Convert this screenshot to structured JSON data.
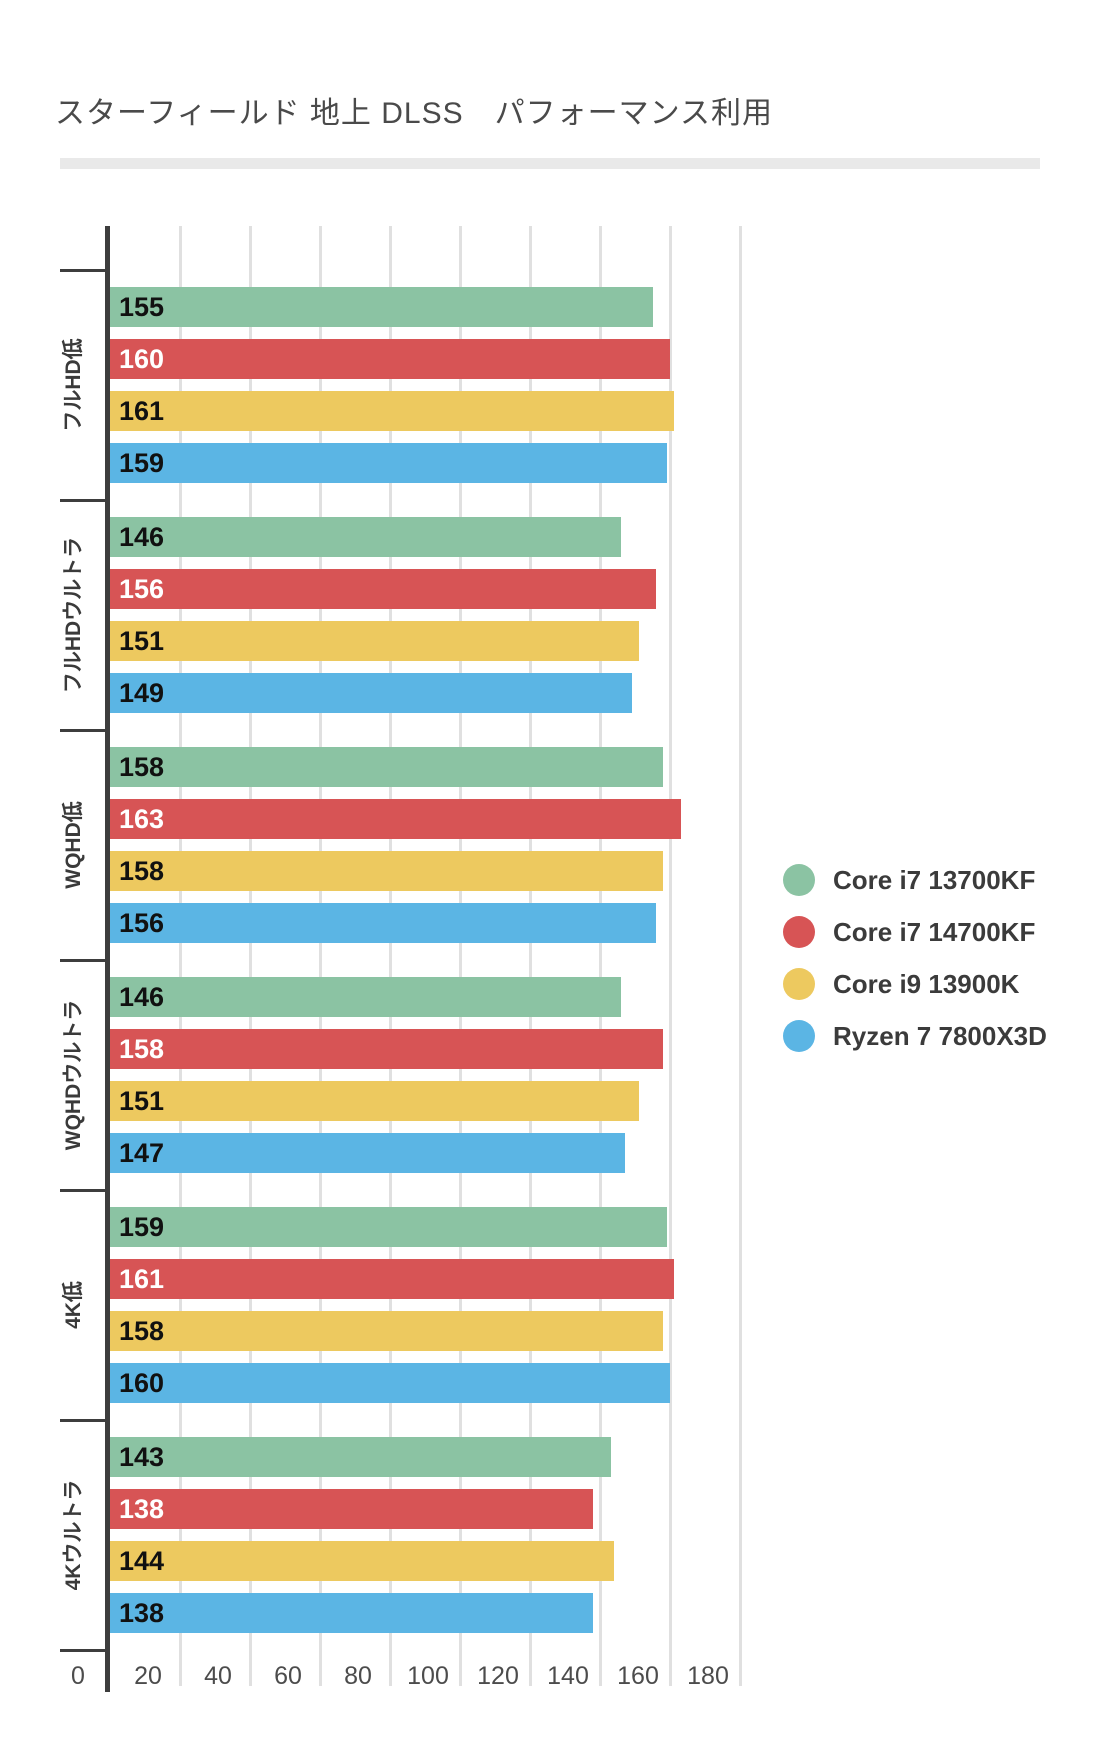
{
  "title": "スターフィールド 地上 DLSS　パフォーマンス利用",
  "chart_data": {
    "type": "bar",
    "orientation": "horizontal",
    "title": "スターフィールド 地上 DLSS　パフォーマンス利用",
    "categories": [
      "フルHD低",
      "フルHDウルトラ",
      "WQHD低",
      "WQHDウルトラ",
      "4K低",
      "4Kウルトラ"
    ],
    "series": [
      {
        "name": "Core i7 13700KF",
        "color": "#8bc3a3",
        "value_label_color": "#111111",
        "values": [
          155,
          146,
          158,
          146,
          159,
          143
        ]
      },
      {
        "name": "Core i7 14700KF",
        "color": "#d75455",
        "value_label_color": "#ffffff",
        "values": [
          160,
          156,
          163,
          158,
          161,
          138
        ]
      },
      {
        "name": "Core i9 13900K",
        "color": "#edc95f",
        "value_label_color": "#111111",
        "values": [
          161,
          151,
          158,
          151,
          158,
          144
        ]
      },
      {
        "name": "Ryzen 7 7800X3D",
        "color": "#5bb5e4",
        "value_label_color": "#111111",
        "values": [
          159,
          149,
          156,
          147,
          160,
          138
        ]
      }
    ],
    "x_ticks": [
      0,
      20,
      40,
      60,
      80,
      100,
      120,
      140,
      160,
      180
    ],
    "xlim": [
      0,
      185
    ],
    "xlabel": "",
    "ylabel": "",
    "grid": true,
    "axis_color": "#3d3d3d",
    "grid_color": "#e0e0e0",
    "value_labels": "inside-start",
    "legend_position": "right"
  }
}
